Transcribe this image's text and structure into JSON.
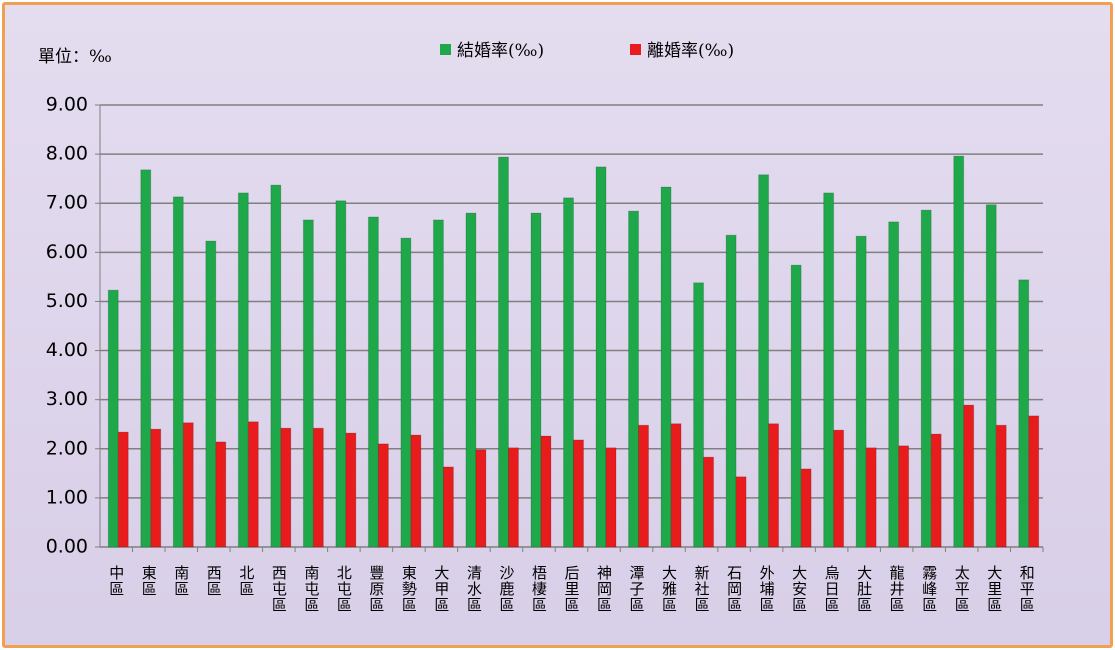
{
  "chart_data": {
    "type": "bar",
    "annotation": "單位：‰",
    "categories": [
      "中區",
      "東區",
      "南區",
      "西區",
      "北區",
      "西屯區",
      "南屯區",
      "北屯區",
      "豐原區",
      "東勢區",
      "大甲區",
      "清水區",
      "沙鹿區",
      "梧棲區",
      "后里區",
      "神岡區",
      "潭子區",
      "大雅區",
      "新社區",
      "石岡區",
      "外埔區",
      "大安區",
      "烏日區",
      "大肚區",
      "龍井區",
      "霧峰區",
      "太平區",
      "大里區",
      "和平區"
    ],
    "series": [
      {
        "name": "結婚率(‰)",
        "color": "#1fa84a",
        "values": [
          5.23,
          7.68,
          7.13,
          6.23,
          7.21,
          7.37,
          6.66,
          7.05,
          6.72,
          6.29,
          6.66,
          6.8,
          7.94,
          6.8,
          7.11,
          7.74,
          6.84,
          7.33,
          5.38,
          6.35,
          7.58,
          5.74,
          7.21,
          6.33,
          6.62,
          6.86,
          7.96,
          6.97,
          5.44
        ]
      },
      {
        "name": "離婚率(‰)",
        "color": "#e81c1c",
        "values": [
          2.34,
          2.4,
          2.53,
          2.14,
          2.55,
          2.42,
          2.42,
          2.32,
          2.1,
          2.28,
          1.63,
          1.98,
          2.02,
          2.26,
          2.18,
          2.02,
          2.48,
          2.51,
          1.83,
          1.43,
          2.51,
          1.59,
          2.38,
          2.02,
          2.06,
          2.3,
          2.89,
          2.48,
          2.67
        ]
      }
    ],
    "ylim": [
      0,
      9
    ],
    "yticks": [
      {
        "value": 0,
        "label": "0.00"
      },
      {
        "value": 1,
        "label": "1.00"
      },
      {
        "value": 2,
        "label": "2.00"
      },
      {
        "value": 3,
        "label": "3.00"
      },
      {
        "value": 4,
        "label": "4.00"
      },
      {
        "value": 5,
        "label": "5.00"
      },
      {
        "value": 6,
        "label": "6.00"
      },
      {
        "value": 7,
        "label": "7.00"
      },
      {
        "value": 8,
        "label": "8.00"
      },
      {
        "value": 9,
        "label": "9.00"
      }
    ],
    "grid": true
  }
}
